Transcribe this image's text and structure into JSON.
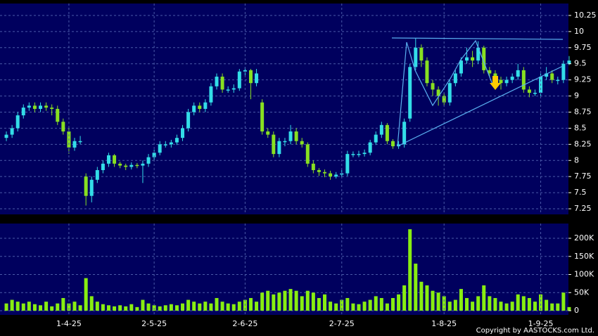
{
  "chart_data": [
    {
      "type": "candlestick",
      "open": [
        8.35,
        8.4,
        8.5,
        8.7,
        8.82,
        8.85,
        8.8,
        8.85,
        8.82,
        8.8,
        8.6,
        8.45,
        8.2,
        8.3,
        7.75,
        7.45,
        7.7,
        7.85,
        7.95,
        8.08,
        7.95,
        7.92,
        7.9,
        7.93,
        7.92,
        7.95,
        8.05,
        8.12,
        8.25,
        8.25,
        8.28,
        8.35,
        8.5,
        8.75,
        8.85,
        8.8,
        8.9,
        9.15,
        9.3,
        9.1,
        9.1,
        9.12,
        9.38,
        9.4,
        9.2,
        8.9,
        8.45,
        8.4,
        8.1,
        8.3,
        8.3,
        8.45,
        8.3,
        8.25,
        7.95,
        7.85,
        7.82,
        7.8,
        7.75,
        7.78,
        7.8,
        8.1,
        8.1,
        8.1,
        8.12,
        8.28,
        8.4,
        8.55,
        8.3,
        8.22,
        8.25,
        8.65,
        9.45,
        9.75,
        9.55,
        9.2,
        9.1,
        9.0,
        8.9,
        9.2,
        9.35,
        9.55,
        9.6,
        9.55,
        9.75,
        9.4,
        9.35,
        9.25,
        9.2,
        9.25,
        9.3,
        9.4,
        9.1,
        9.05,
        9.05,
        9.3,
        9.35,
        9.25,
        9.25,
        9.5
      ],
      "high": [
        8.45,
        8.55,
        8.75,
        8.87,
        8.9,
        8.9,
        8.9,
        8.9,
        8.87,
        8.85,
        8.65,
        8.5,
        8.35,
        8.38,
        7.8,
        7.75,
        7.9,
        8.0,
        8.12,
        8.1,
        7.98,
        7.95,
        7.97,
        7.96,
        8.0,
        8.1,
        8.17,
        8.3,
        8.3,
        8.32,
        8.4,
        8.55,
        8.8,
        8.9,
        8.9,
        8.95,
        9.2,
        9.35,
        9.35,
        9.15,
        9.18,
        9.42,
        9.45,
        9.42,
        9.42,
        8.95,
        8.5,
        8.45,
        8.35,
        8.35,
        8.55,
        8.5,
        8.35,
        8.28,
        8.0,
        7.88,
        7.86,
        7.84,
        7.82,
        7.85,
        8.15,
        8.14,
        8.15,
        8.17,
        8.32,
        8.45,
        8.6,
        8.58,
        8.33,
        8.3,
        8.65,
        9.5,
        9.9,
        9.8,
        9.6,
        9.25,
        9.15,
        9.05,
        9.25,
        9.4,
        9.6,
        9.75,
        9.7,
        9.85,
        9.78,
        9.45,
        9.4,
        9.3,
        9.3,
        9.35,
        9.5,
        9.45,
        9.15,
        9.1,
        9.35,
        9.45,
        9.4,
        9.3,
        9.55,
        9.62
      ],
      "low": [
        8.3,
        8.35,
        8.45,
        8.65,
        8.77,
        8.75,
        8.75,
        8.77,
        8.7,
        8.55,
        8.4,
        8.1,
        8.15,
        8.25,
        7.3,
        7.35,
        7.65,
        7.8,
        7.9,
        7.9,
        7.88,
        7.85,
        7.86,
        7.88,
        7.65,
        7.9,
        8.0,
        8.08,
        8.2,
        8.2,
        8.24,
        8.3,
        8.45,
        8.7,
        8.75,
        8.75,
        8.85,
        9.1,
        9.05,
        9.05,
        9.05,
        9.08,
        9.32,
        8.95,
        9.15,
        8.4,
        8.35,
        8.05,
        8.05,
        8.22,
        8.25,
        8.25,
        8.2,
        7.9,
        7.8,
        7.76,
        7.74,
        7.7,
        7.72,
        7.74,
        7.76,
        8.05,
        8.05,
        8.06,
        8.08,
        8.24,
        8.35,
        8.25,
        8.18,
        8.18,
        8.2,
        8.6,
        9.4,
        9.45,
        9.15,
        9.0,
        8.85,
        8.85,
        8.85,
        9.15,
        9.3,
        9.5,
        9.45,
        9.5,
        9.35,
        9.3,
        9.2,
        9.1,
        9.15,
        9.2,
        9.25,
        9.05,
        8.98,
        9.0,
        9.0,
        9.25,
        9.2,
        9.18,
        9.2,
        9.48
      ],
      "close": [
        8.4,
        8.5,
        8.7,
        8.82,
        8.85,
        8.8,
        8.85,
        8.82,
        8.8,
        8.6,
        8.45,
        8.2,
        8.3,
        8.3,
        7.45,
        7.7,
        7.85,
        7.95,
        8.08,
        7.95,
        7.92,
        7.9,
        7.93,
        7.92,
        7.95,
        8.05,
        8.12,
        8.25,
        8.25,
        8.28,
        8.35,
        8.5,
        8.75,
        8.85,
        8.8,
        8.9,
        9.15,
        9.3,
        9.1,
        9.1,
        9.12,
        9.38,
        9.4,
        9.2,
        9.35,
        8.45,
        8.4,
        8.1,
        8.3,
        8.3,
        8.45,
        8.3,
        8.25,
        7.95,
        7.85,
        7.82,
        7.8,
        7.75,
        7.78,
        7.8,
        8.1,
        8.1,
        8.1,
        8.12,
        8.28,
        8.4,
        8.55,
        8.3,
        8.22,
        8.25,
        8.6,
        9.45,
        9.75,
        9.55,
        9.2,
        9.1,
        9.0,
        8.9,
        9.2,
        9.35,
        9.55,
        9.6,
        9.55,
        9.75,
        9.4,
        9.35,
        9.25,
        9.2,
        9.25,
        9.3,
        9.4,
        9.1,
        9.05,
        9.05,
        9.3,
        9.35,
        9.25,
        9.25,
        9.5,
        9.55
      ],
      "up_color": "#33dde8",
      "down_color": "#88e021",
      "ylim": [
        7.163,
        10.435
      ],
      "yticks": [
        7.25,
        7.5,
        7.75,
        8,
        8.25,
        8.5,
        8.75,
        9,
        9.25,
        9.5,
        9.75,
        10,
        10.25
      ],
      "grid": true
    },
    {
      "type": "bar",
      "categories": [
        null,
        null,
        null,
        null,
        null,
        null,
        null,
        null,
        null,
        null,
        null,
        "1-4-25",
        null,
        null,
        null,
        null,
        null,
        null,
        null,
        null,
        null,
        null,
        null,
        null,
        null,
        null,
        "2-5-25",
        null,
        null,
        null,
        null,
        null,
        null,
        null,
        null,
        null,
        null,
        null,
        null,
        null,
        null,
        null,
        "2-6-25",
        null,
        null,
        null,
        null,
        null,
        null,
        null,
        null,
        null,
        null,
        null,
        null,
        null,
        null,
        null,
        null,
        "2-7-25",
        null,
        null,
        null,
        null,
        null,
        null,
        null,
        null,
        null,
        null,
        null,
        null,
        null,
        null,
        null,
        null,
        null,
        "1-8-25",
        null,
        null,
        null,
        null,
        null,
        null,
        null,
        null,
        null,
        null,
        null,
        null,
        null,
        null,
        null,
        null,
        "1-9-25",
        null,
        null,
        null,
        null,
        null
      ],
      "values": [
        20000,
        30000,
        25000,
        20000,
        25000,
        18000,
        15000,
        25000,
        12000,
        20000,
        35000,
        20000,
        25000,
        15000,
        90000,
        40000,
        25000,
        18000,
        15000,
        12000,
        15000,
        12000,
        18000,
        10000,
        30000,
        20000,
        15000,
        12000,
        15000,
        18000,
        15000,
        20000,
        30000,
        25000,
        20000,
        25000,
        20000,
        35000,
        25000,
        20000,
        18000,
        25000,
        30000,
        35000,
        25000,
        50000,
        55000,
        45000,
        50000,
        55000,
        60000,
        55000,
        40000,
        55000,
        50000,
        35000,
        45000,
        25000,
        20000,
        30000,
        35000,
        20000,
        18000,
        25000,
        30000,
        40000,
        35000,
        20000,
        35000,
        45000,
        70000,
        225000,
        130000,
        80000,
        70000,
        55000,
        50000,
        40000,
        25000,
        30000,
        60000,
        35000,
        25000,
        40000,
        70000,
        40000,
        35000,
        25000,
        20000,
        25000,
        45000,
        40000,
        35000,
        25000,
        45000,
        30000,
        20000,
        20000,
        50000,
        10000
      ],
      "color": "#88ee11",
      "ylim": [
        -11650,
        240800
      ],
      "yticks": [
        0,
        {
          "value": 50000,
          "label": "50K"
        },
        {
          "value": 100000,
          "label": "100K"
        },
        {
          "value": 150000,
          "label": "150K"
        },
        {
          "value": 200000,
          "label": "200K"
        }
      ],
      "grid": true
    }
  ],
  "copyright": "Copyright by AASTOCKS.com Ltd."
}
